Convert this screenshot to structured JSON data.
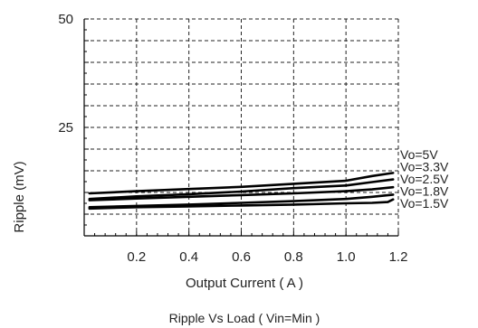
{
  "chart_data": {
    "type": "line",
    "title": "Ripple  Vs Load ( Vin=Min )",
    "xlabel": "Output Current ( A )",
    "ylabel": "Ripple (mV)",
    "xlim": [
      0,
      1.2
    ],
    "ylim": [
      0,
      50
    ],
    "x_ticks": [
      0.2,
      0.4,
      0.6,
      0.8,
      1.0,
      1.2
    ],
    "x_tick_labels": [
      "0.2",
      "0.4",
      "0.6",
      "0.8",
      "1.0",
      "1.2"
    ],
    "y_ticks": [
      25,
      50
    ],
    "y_tick_labels": [
      "25",
      "50"
    ],
    "grid": true,
    "grid_style": "dashed",
    "legend_placement": "right",
    "series": [
      {
        "name": "Vo=5V",
        "x": [
          0.02,
          0.2,
          0.4,
          0.6,
          0.8,
          1.0,
          1.1,
          1.18
        ],
        "values": [
          9.8,
          10.3,
          10.8,
          11.3,
          12.0,
          12.7,
          13.8,
          14.5
        ]
      },
      {
        "name": "Vo=3.3V",
        "x": [
          0.02,
          0.2,
          0.4,
          0.6,
          0.8,
          1.0,
          1.1,
          1.18
        ],
        "values": [
          8.5,
          9.1,
          9.6,
          10.2,
          11.0,
          11.6,
          12.4,
          13.0
        ]
      },
      {
        "name": "Vo=2.5V",
        "x": [
          0.02,
          0.2,
          0.4,
          0.6,
          0.8,
          1.0,
          1.1,
          1.18
        ],
        "values": [
          8.2,
          8.6,
          9.0,
          9.4,
          9.8,
          10.3,
          10.7,
          11.2
        ]
      },
      {
        "name": "Vo=1.8V",
        "x": [
          0.02,
          0.2,
          0.4,
          0.6,
          0.8,
          1.0,
          1.1,
          1.18
        ],
        "values": [
          6.6,
          6.9,
          7.2,
          7.6,
          8.0,
          8.5,
          9.0,
          9.5
        ]
      },
      {
        "name": "Vo=1.5V",
        "x": [
          0.02,
          0.2,
          0.4,
          0.6,
          0.8,
          1.0,
          1.1,
          1.16,
          1.18
        ],
        "values": [
          6.3,
          6.6,
          6.8,
          7.0,
          7.2,
          7.5,
          7.6,
          7.8,
          8.4
        ]
      }
    ],
    "line_color": "#000000",
    "grid_color": "#222222"
  }
}
